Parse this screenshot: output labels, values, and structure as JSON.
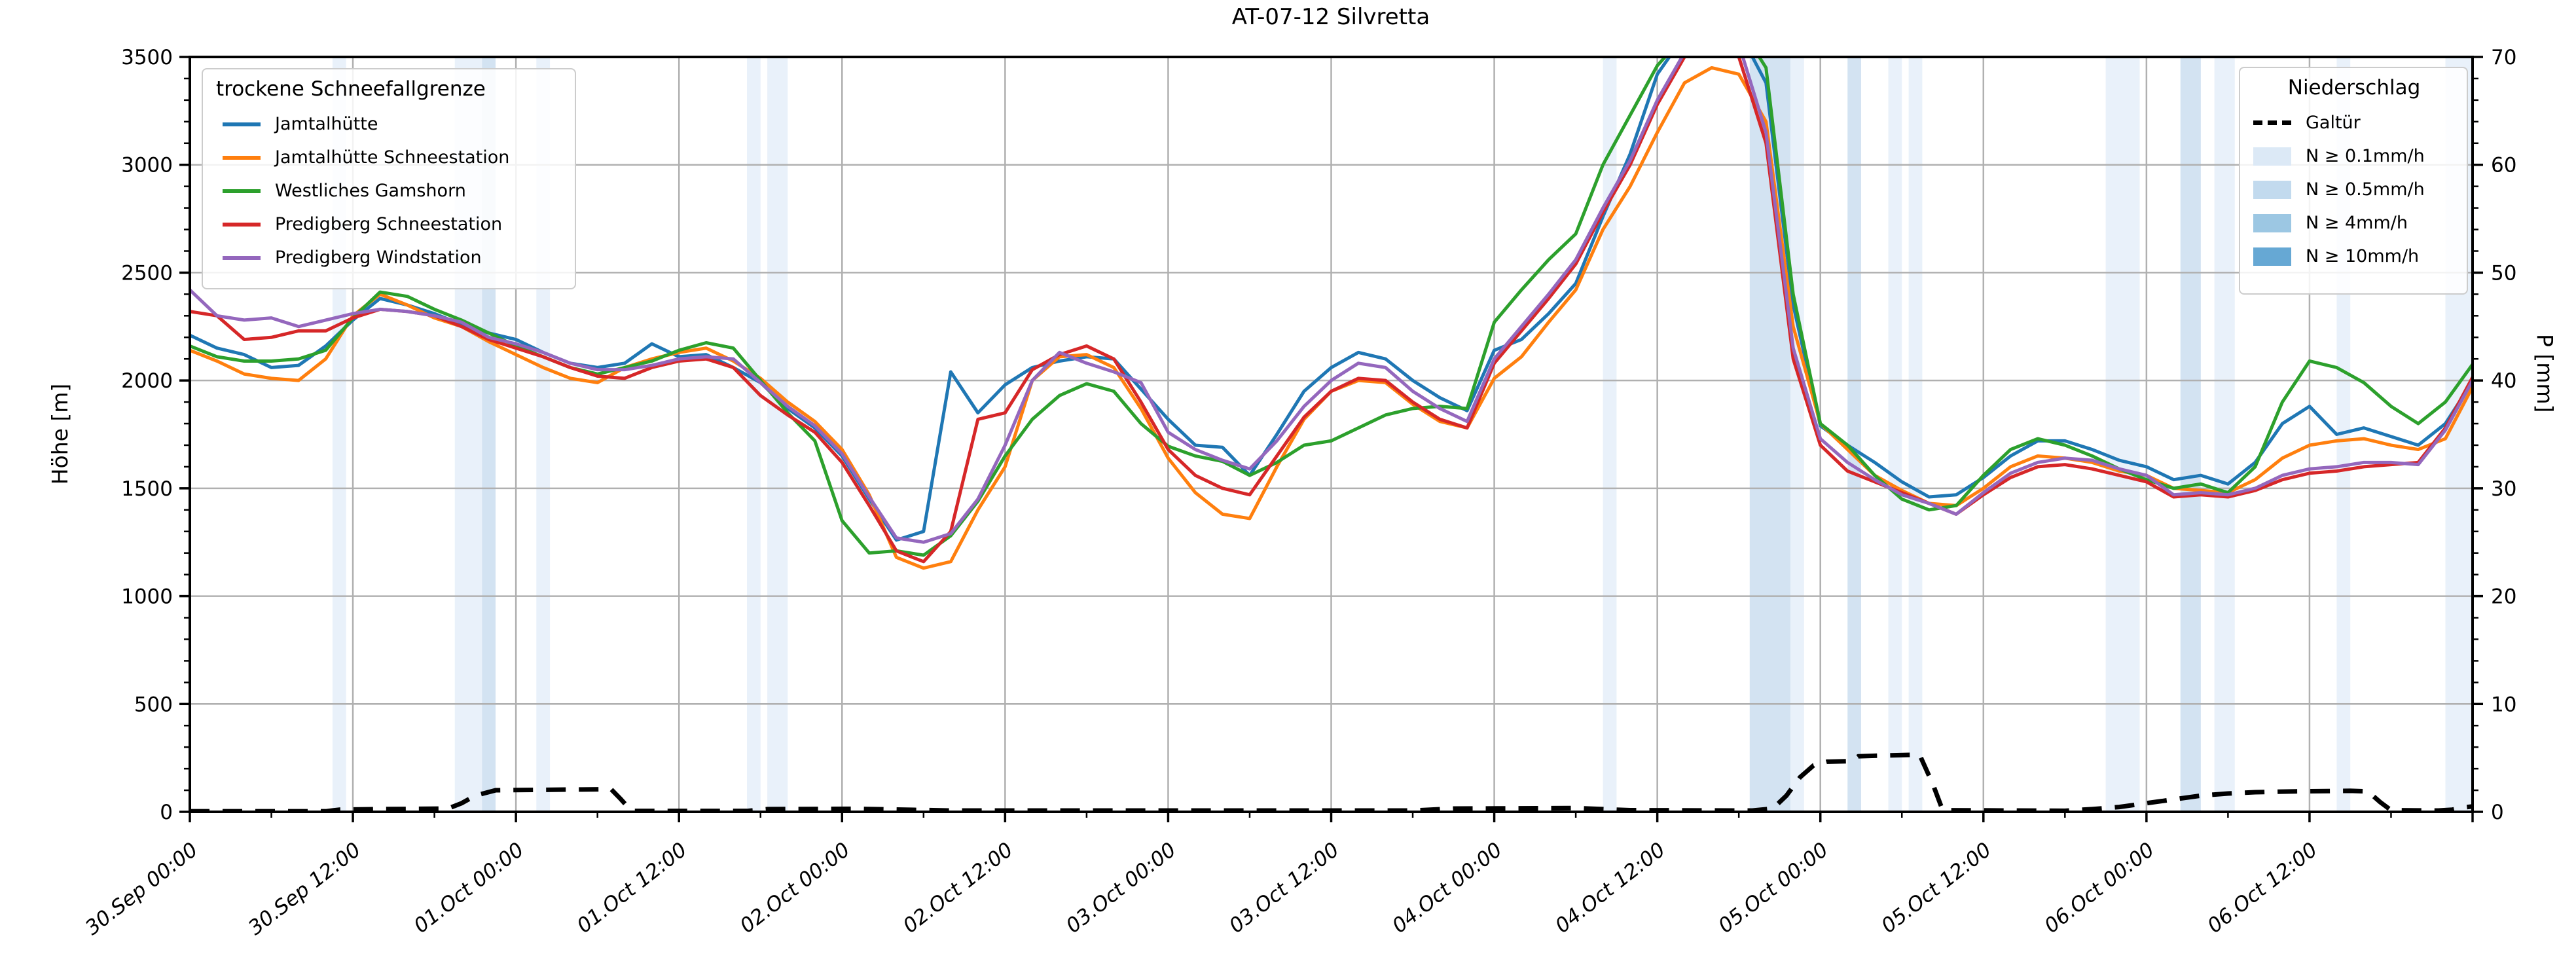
{
  "title": "AT-07-12 Silvretta",
  "axes": {
    "y_left_label": "Höhe [m]",
    "y_right_label": "P [mm]",
    "y_left_ticks": [
      0,
      500,
      1000,
      1500,
      2000,
      2500,
      3000,
      3500
    ],
    "y_left_minor_step": 100,
    "y_left_max": 3500,
    "y_right_ticks": [
      0,
      10,
      20,
      30,
      40,
      50,
      60,
      70
    ],
    "y_right_minor_step": 2,
    "y_right_max": 70,
    "x_tick_labels": [
      "30.Sep 00:00",
      "30.Sep 12:00",
      "01.Oct 00:00",
      "01.Oct 12:00",
      "02.Oct 00:00",
      "02.Oct 12:00",
      "03.Oct 00:00",
      "03.Oct 12:00",
      "04.Oct 00:00",
      "04.Oct 12:00",
      "05.Oct 00:00",
      "05.Oct 12:00",
      "06.Oct 00:00",
      "06.Oct 12:00"
    ],
    "x_total_hours": 168,
    "x_major_step_h": 12,
    "x_minor_step_h": 6
  },
  "legend_left": {
    "title": "trockene Schneefallgrenze",
    "items": [
      {
        "label": "Jamtalhütte",
        "color": "#1f77b4"
      },
      {
        "label": "Jamtalhütte Schneestation",
        "color": "#ff7f0e"
      },
      {
        "label": "Westliches Gamshorn",
        "color": "#2ca02c"
      },
      {
        "label": "Predigberg Schneestation",
        "color": "#d62728"
      },
      {
        "label": "Predigberg Windstation",
        "color": "#9467bd"
      }
    ]
  },
  "legend_right": {
    "title": "Niederschlag",
    "line_item": {
      "label": "Galtür",
      "color": "#000000"
    },
    "patch_items": [
      {
        "label": "N ≥ 0.1mm/h",
        "color": "#dce9f6"
      },
      {
        "label": "N ≥ 0.5mm/h",
        "color": "#c2daee"
      },
      {
        "label": "N ≥ 4mm/h",
        "color": "#9cc7e3"
      },
      {
        "label": "N ≥ 10mm/h",
        "color": "#66a8d4"
      }
    ]
  },
  "colors": {
    "grid": "#b0b0b0",
    "frame": "#000000",
    "galtuer_line": "#000000",
    "band_level_1": "#e9f1fa",
    "band_level_2": "#d3e3f2",
    "band_level_3": "#b9d5eb",
    "band_level_4": "#8fc0e2"
  },
  "chart_data": {
    "type": "line",
    "title": "AT-07-12 Silvretta",
    "xlabel": "",
    "ylabel_left": "Höhe [m]",
    "ylabel_right": "P [mm]",
    "x_unit": "hours since 30.Sep 00:00",
    "x_range_h": [
      0,
      168
    ],
    "ylim_left": [
      0,
      3500
    ],
    "ylim_right": [
      0,
      70
    ],
    "grid": true,
    "x_step_h": 2,
    "series": [
      {
        "name": "Jamtalhütte",
        "color": "#1f77b4",
        "axis": "left",
        "values": [
          2210,
          2150,
          2120,
          2060,
          2070,
          2160,
          2280,
          2380,
          2350,
          2310,
          2260,
          2220,
          2190,
          2130,
          2080,
          2060,
          2080,
          2170,
          2110,
          2120,
          2060,
          1990,
          1870,
          1780,
          1650,
          1450,
          1260,
          1300,
          2040,
          1850,
          1980,
          2060,
          2090,
          2110,
          2100,
          1960,
          1820,
          1700,
          1690,
          1560,
          1750,
          1950,
          2060,
          2130,
          2100,
          2000,
          1920,
          1860,
          2140,
          2190,
          2310,
          2450,
          2760,
          3050,
          3420,
          3600,
          3680,
          3620,
          3380,
          2350,
          1790,
          1700,
          1620,
          1530,
          1460,
          1470,
          1550,
          1650,
          1720,
          1720,
          1680,
          1630,
          1600,
          1540,
          1560,
          1520,
          1620,
          1800,
          1880,
          1750,
          1780,
          1740,
          1700,
          1800,
          1995
        ]
      },
      {
        "name": "Jamtalhütte Schneestation",
        "color": "#ff7f0e",
        "axis": "left",
        "values": [
          2140,
          2090,
          2030,
          2010,
          2000,
          2100,
          2300,
          2400,
          2350,
          2290,
          2250,
          2180,
          2120,
          2060,
          2010,
          1990,
          2060,
          2100,
          2130,
          2150,
          2090,
          2010,
          1900,
          1810,
          1680,
          1470,
          1180,
          1130,
          1160,
          1400,
          1600,
          2000,
          2110,
          2120,
          2060,
          1870,
          1640,
          1480,
          1380,
          1360,
          1600,
          1820,
          1950,
          2000,
          1990,
          1890,
          1810,
          1780,
          2010,
          2110,
          2270,
          2420,
          2700,
          2900,
          3150,
          3380,
          3450,
          3420,
          3200,
          2250,
          1800,
          1680,
          1560,
          1490,
          1430,
          1420,
          1500,
          1600,
          1650,
          1640,
          1620,
          1580,
          1560,
          1500,
          1490,
          1480,
          1540,
          1640,
          1700,
          1720,
          1730,
          1700,
          1680,
          1730,
          1970
        ]
      },
      {
        "name": "Westliches Gamshorn",
        "color": "#2ca02c",
        "axis": "left",
        "values": [
          2160,
          2110,
          2090,
          2090,
          2100,
          2140,
          2290,
          2410,
          2390,
          2330,
          2280,
          2220,
          2160,
          2110,
          2060,
          2030,
          2060,
          2090,
          2140,
          2175,
          2150,
          2000,
          1850,
          1720,
          1350,
          1200,
          1210,
          1190,
          1280,
          1440,
          1650,
          1820,
          1930,
          1985,
          1950,
          1800,
          1695,
          1650,
          1625,
          1560,
          1620,
          1700,
          1720,
          1780,
          1840,
          1870,
          1880,
          1870,
          2270,
          2420,
          2560,
          2680,
          3000,
          3230,
          3460,
          3600,
          3700,
          3650,
          3450,
          2400,
          1800,
          1700,
          1560,
          1450,
          1400,
          1420,
          1560,
          1680,
          1730,
          1700,
          1650,
          1590,
          1540,
          1500,
          1520,
          1480,
          1600,
          1900,
          2090,
          2060,
          1990,
          1880,
          1800,
          1900,
          2075
        ]
      },
      {
        "name": "Predigberg Schneestation",
        "color": "#d62728",
        "axis": "left",
        "values": [
          2320,
          2300,
          2190,
          2200,
          2230,
          2230,
          2290,
          2330,
          2320,
          2300,
          2250,
          2190,
          2150,
          2110,
          2060,
          2020,
          2010,
          2060,
          2090,
          2100,
          2060,
          1930,
          1840,
          1760,
          1620,
          1420,
          1210,
          1160,
          1300,
          1820,
          1850,
          2050,
          2120,
          2160,
          2100,
          1900,
          1680,
          1560,
          1500,
          1470,
          1650,
          1830,
          1950,
          2010,
          2000,
          1900,
          1820,
          1780,
          2080,
          2230,
          2380,
          2540,
          2780,
          3000,
          3280,
          3500,
          3620,
          3500,
          3100,
          2100,
          1700,
          1580,
          1530,
          1480,
          1430,
          1380,
          1470,
          1550,
          1600,
          1610,
          1590,
          1560,
          1530,
          1460,
          1470,
          1460,
          1490,
          1540,
          1570,
          1580,
          1600,
          1610,
          1620,
          1780,
          2015
        ]
      },
      {
        "name": "Predigberg Windstation",
        "color": "#9467bd",
        "axis": "left",
        "values": [
          2420,
          2300,
          2280,
          2290,
          2250,
          2280,
          2310,
          2330,
          2320,
          2300,
          2270,
          2200,
          2170,
          2130,
          2080,
          2050,
          2050,
          2070,
          2100,
          2110,
          2100,
          1990,
          1880,
          1790,
          1660,
          1460,
          1270,
          1250,
          1290,
          1450,
          1700,
          2000,
          2130,
          2080,
          2040,
          1990,
          1760,
          1680,
          1630,
          1590,
          1720,
          1880,
          2000,
          2080,
          2060,
          1950,
          1870,
          1810,
          2100,
          2250,
          2400,
          2560,
          2800,
          3020,
          3300,
          3520,
          3640,
          3560,
          3150,
          2150,
          1730,
          1620,
          1540,
          1470,
          1430,
          1380,
          1480,
          1570,
          1620,
          1640,
          1630,
          1590,
          1560,
          1470,
          1480,
          1470,
          1500,
          1560,
          1590,
          1600,
          1620,
          1620,
          1610,
          1770,
          2000
        ]
      }
    ],
    "galtuer_precip_mm": {
      "name": "Galtür",
      "axis": "right",
      "style": "dashed",
      "points": [
        [
          0,
          0.05
        ],
        [
          10,
          0.05
        ],
        [
          11,
          0.2
        ],
        [
          14,
          0.25
        ],
        [
          19,
          0.3
        ],
        [
          20,
          0.8
        ],
        [
          21,
          1.5
        ],
        [
          22.5,
          2.0
        ],
        [
          31,
          2.1
        ],
        [
          31.7,
          1.2
        ],
        [
          32.5,
          0.08
        ],
        [
          41,
          0.08
        ],
        [
          42.5,
          0.25
        ],
        [
          49,
          0.28
        ],
        [
          56,
          0.12
        ],
        [
          90,
          0.12
        ],
        [
          93,
          0.3
        ],
        [
          102,
          0.35
        ],
        [
          106,
          0.15
        ],
        [
          115,
          0.12
        ],
        [
          116.5,
          0.3
        ],
        [
          117.5,
          1.5
        ],
        [
          118.5,
          3.2
        ],
        [
          119.5,
          4.3
        ],
        [
          120.5,
          4.65
        ],
        [
          122.3,
          4.7
        ],
        [
          122.8,
          5.15
        ],
        [
          124,
          5.2
        ],
        [
          127.3,
          5.3
        ],
        [
          128.3,
          2.5
        ],
        [
          129,
          0.15
        ],
        [
          138,
          0.1
        ],
        [
          140,
          0.25
        ],
        [
          142,
          0.45
        ],
        [
          144,
          0.8
        ],
        [
          146,
          1.15
        ],
        [
          148,
          1.5
        ],
        [
          150,
          1.7
        ],
        [
          152,
          1.82
        ],
        [
          155,
          1.9
        ],
        [
          159,
          1.95
        ],
        [
          160.3,
          1.9
        ],
        [
          161.2,
          0.9
        ],
        [
          162,
          0.15
        ],
        [
          165.5,
          0.12
        ],
        [
          166.5,
          0.2
        ],
        [
          167.3,
          0.4
        ],
        [
          168,
          0.5
        ]
      ]
    },
    "precip_bands": [
      {
        "start_h": 10.5,
        "end_h": 11.5,
        "level": 1
      },
      {
        "start_h": 19.5,
        "end_h": 21.5,
        "level": 1
      },
      {
        "start_h": 21.5,
        "end_h": 22.5,
        "level": 2
      },
      {
        "start_h": 25.5,
        "end_h": 26.5,
        "level": 1
      },
      {
        "start_h": 41,
        "end_h": 42,
        "level": 1
      },
      {
        "start_h": 42.5,
        "end_h": 44,
        "level": 1
      },
      {
        "start_h": 104,
        "end_h": 105,
        "level": 1
      },
      {
        "start_h": 114.8,
        "end_h": 117.8,
        "level": 2
      },
      {
        "start_h": 117.8,
        "end_h": 118.8,
        "level": 1
      },
      {
        "start_h": 122,
        "end_h": 123,
        "level": 2
      },
      {
        "start_h": 125,
        "end_h": 126,
        "level": 1
      },
      {
        "start_h": 126.5,
        "end_h": 127.5,
        "level": 1
      },
      {
        "start_h": 141,
        "end_h": 143.5,
        "level": 1
      },
      {
        "start_h": 146.5,
        "end_h": 148,
        "level": 2
      },
      {
        "start_h": 149,
        "end_h": 150.5,
        "level": 1
      },
      {
        "start_h": 158,
        "end_h": 159,
        "level": 1
      },
      {
        "start_h": 166,
        "end_h": 168,
        "level": 1
      }
    ]
  }
}
